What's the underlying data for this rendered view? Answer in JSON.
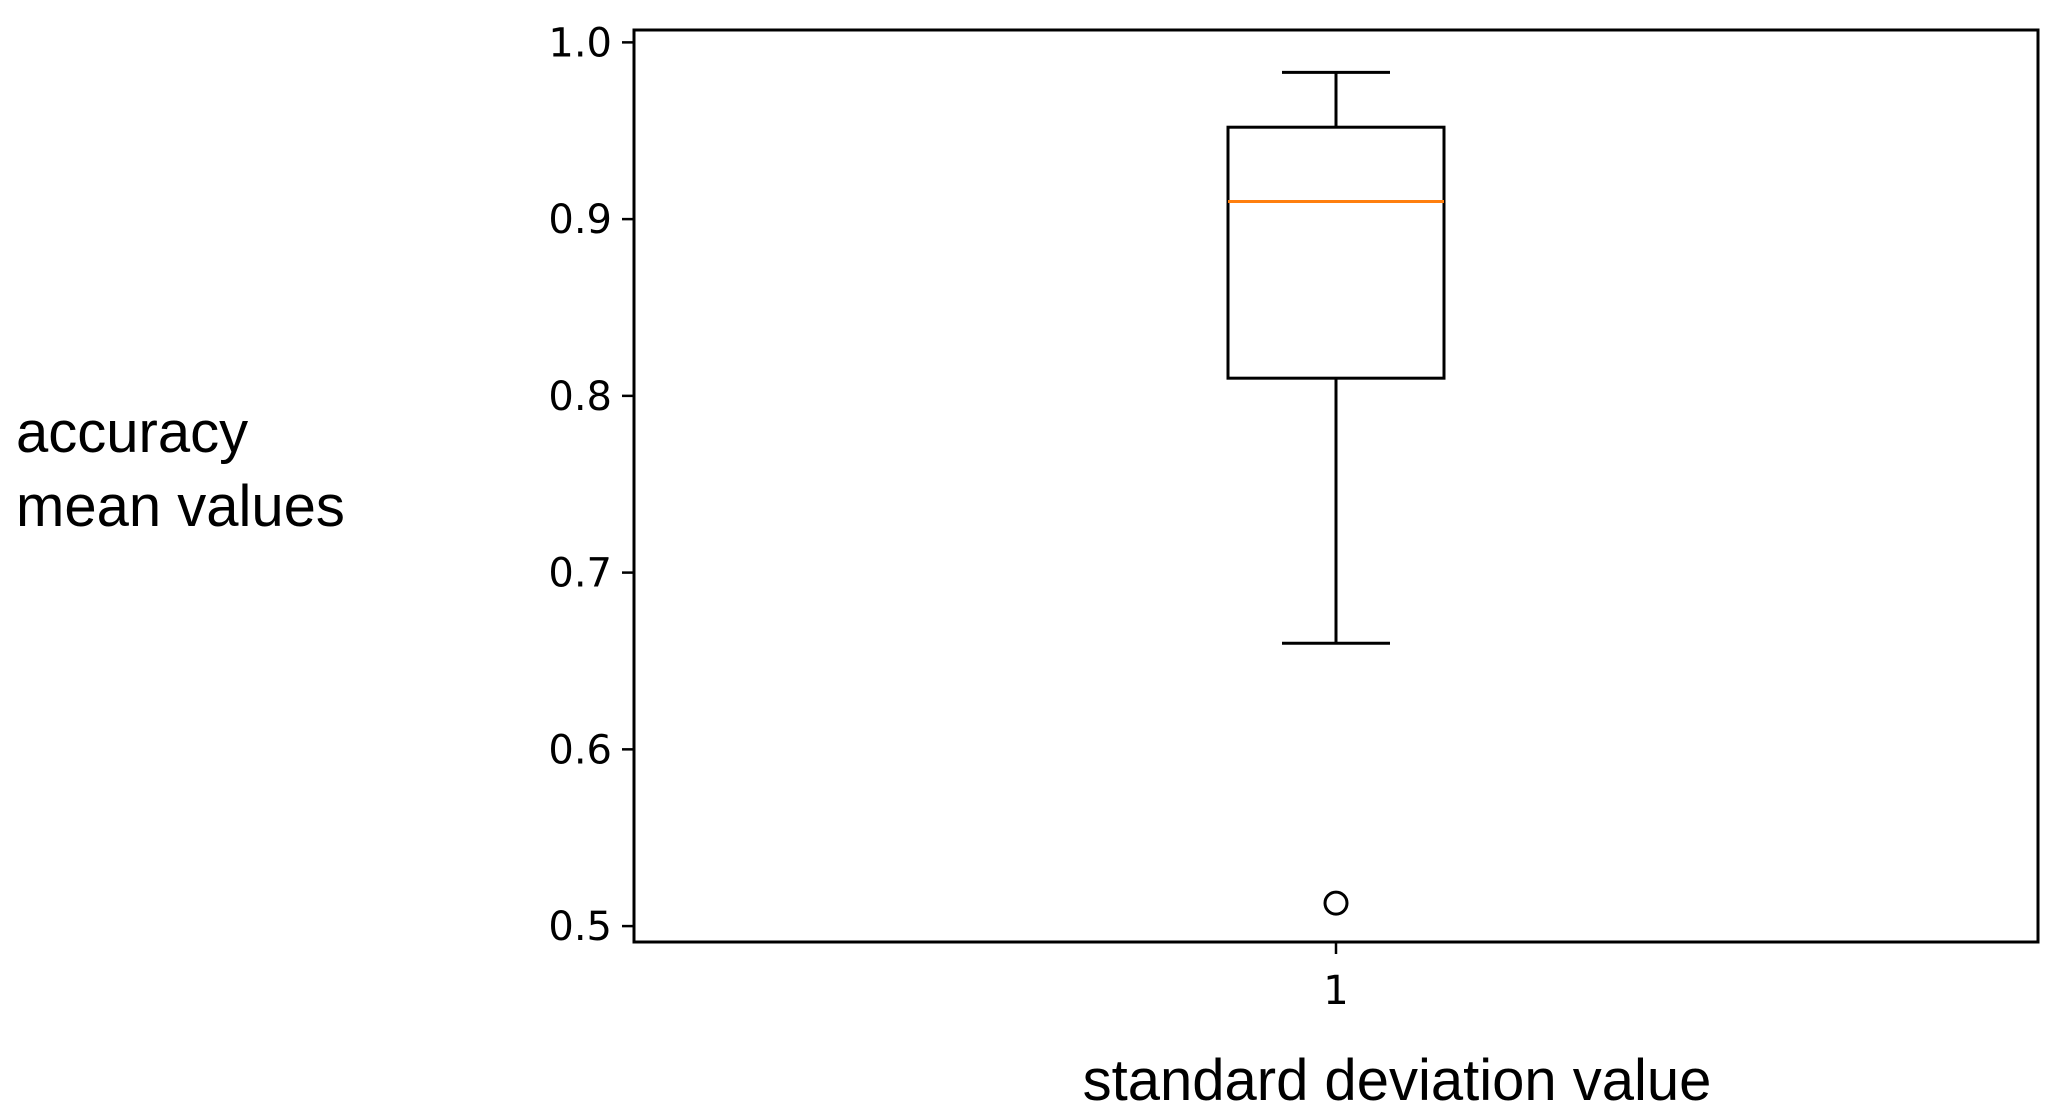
{
  "chart_data": {
    "type": "box",
    "title": "",
    "xlabel": "standard deviation value",
    "ylabel_lines": [
      "accuracy",
      "mean values"
    ],
    "categories": [
      "1"
    ],
    "boxes": [
      {
        "category": "1",
        "whisker_low": 0.66,
        "q1": 0.81,
        "median": 0.91,
        "q3": 0.952,
        "whisker_high": 0.983,
        "outliers": [
          0.513
        ]
      }
    ],
    "ylim": [
      0.491,
      1.007
    ],
    "yticks": [
      0.5,
      0.6,
      0.7,
      0.8,
      0.9,
      1.0
    ],
    "ytick_labels": [
      "0.5",
      "0.6",
      "0.7",
      "0.8",
      "0.9",
      "1.0"
    ],
    "grid": false,
    "colors": {
      "box": "#000000",
      "median": "#ff7f0e",
      "axes": "#000000"
    }
  }
}
